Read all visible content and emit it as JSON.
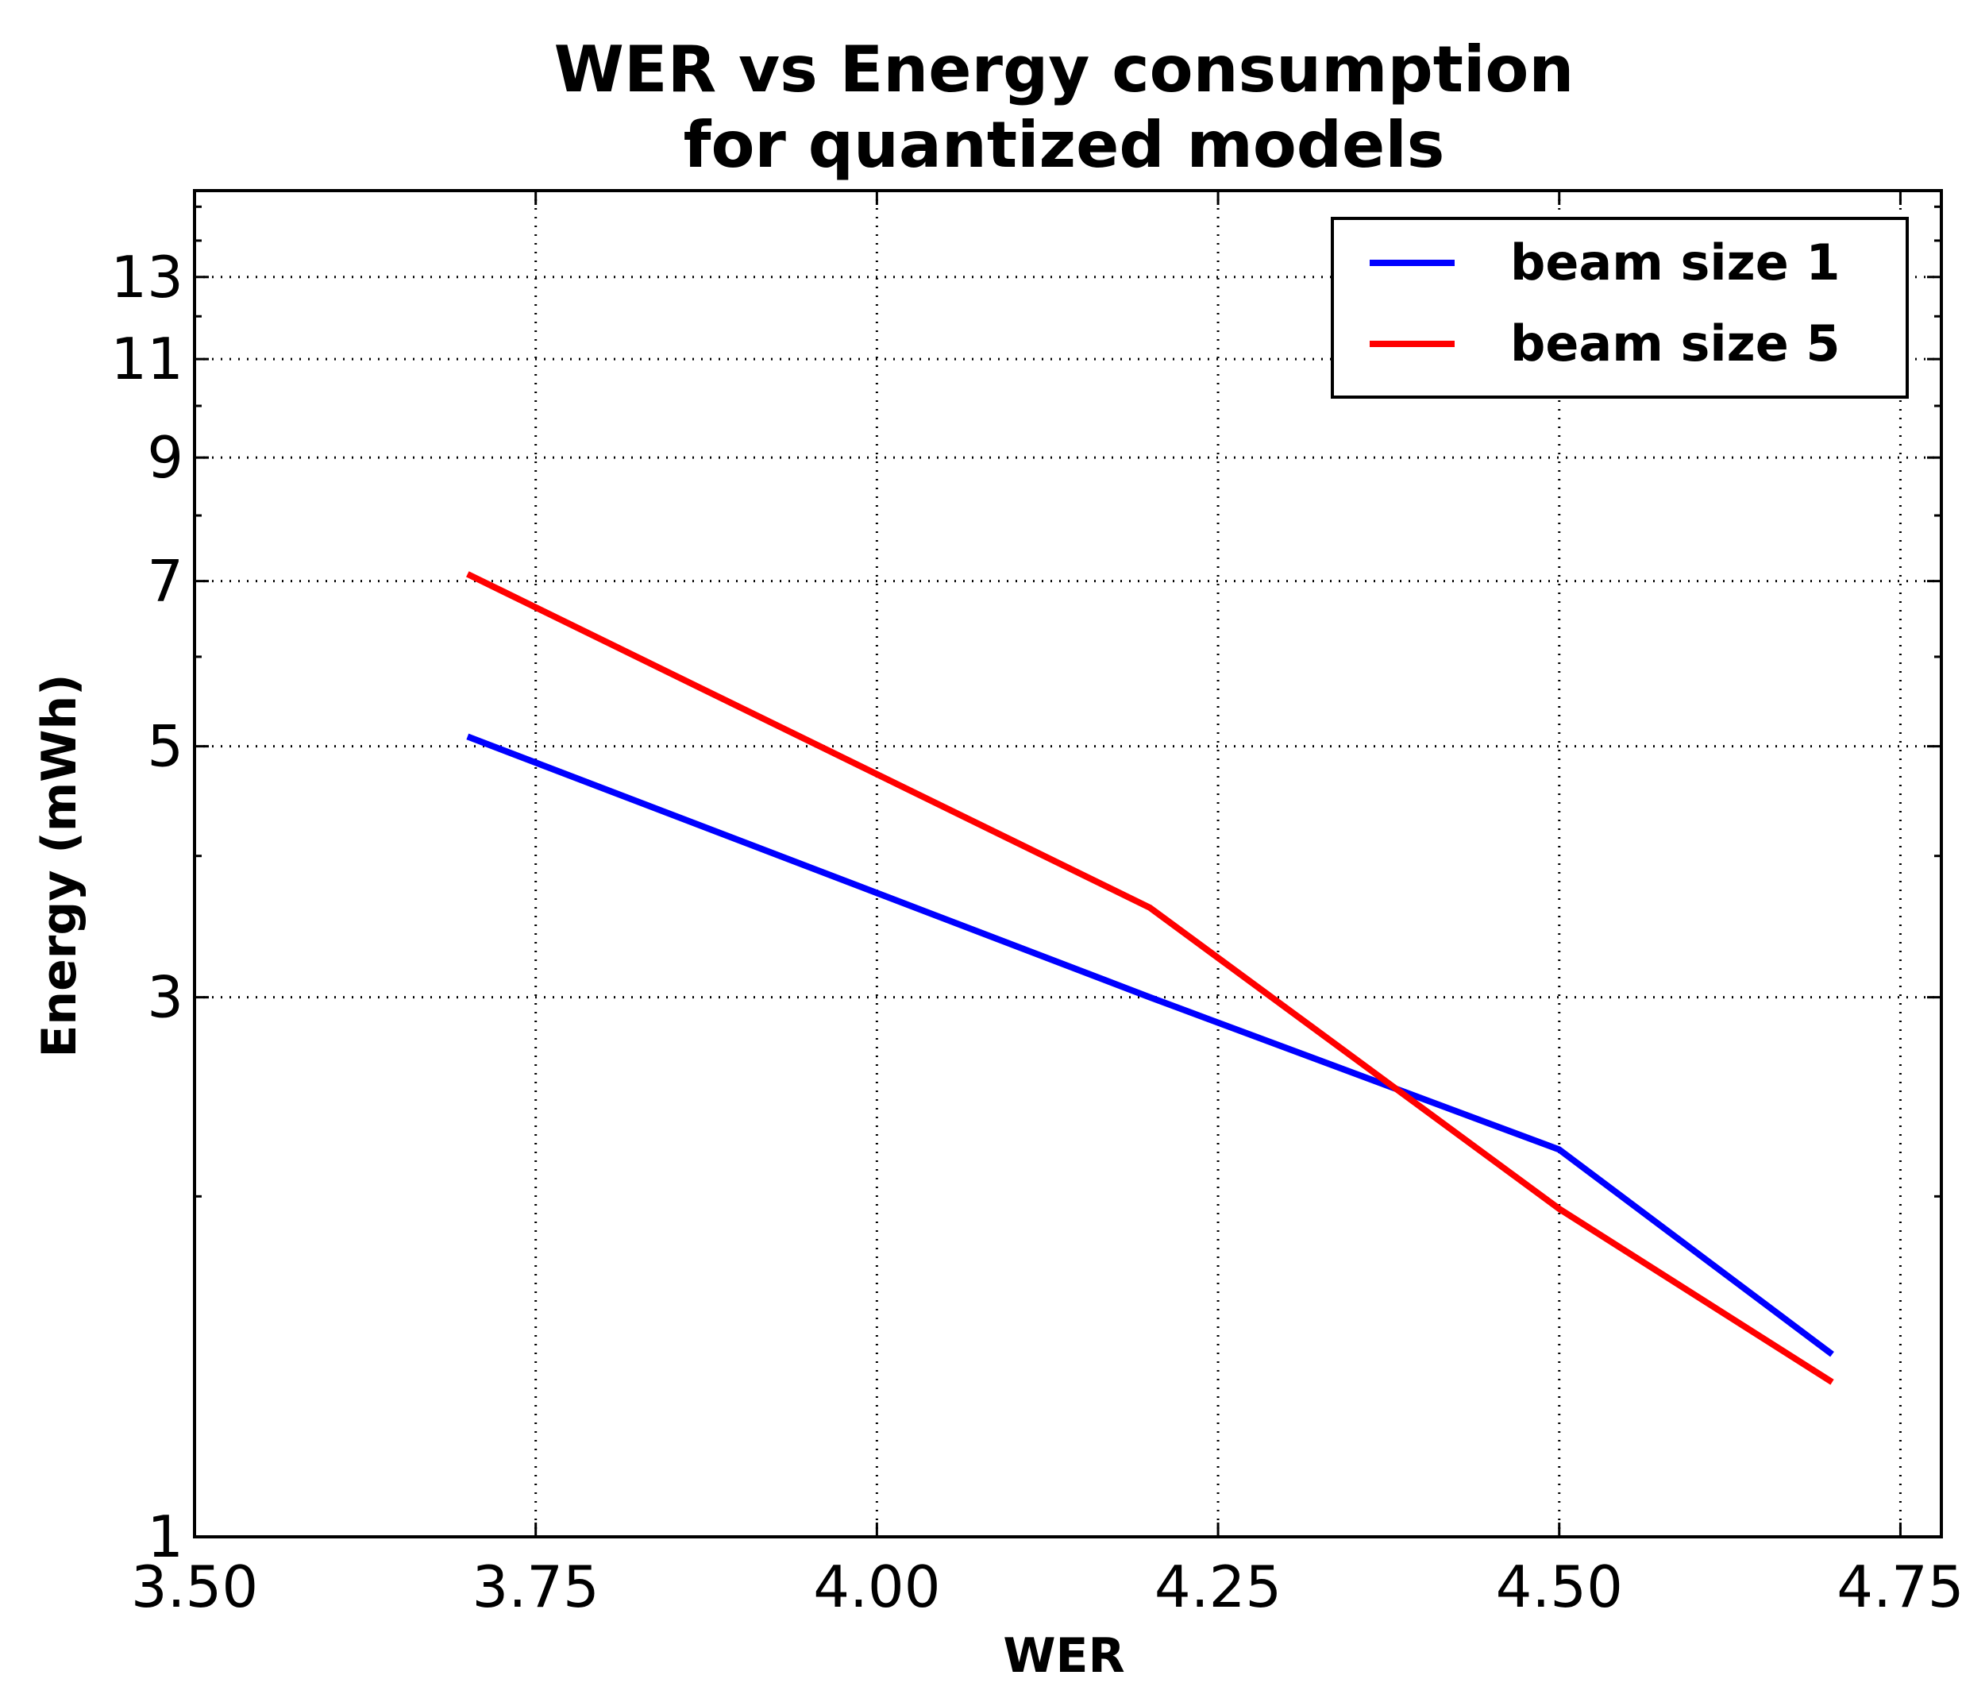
{
  "chart_data": {
    "type": "line",
    "title": [
      "WER vs Energy consumption",
      "for quantized models"
    ],
    "xlabel": "WER",
    "ylabel": "Energy (mWh)",
    "xlim": [
      3.5,
      4.78
    ],
    "ylim": [
      1,
      15.5
    ],
    "y_scale": "log",
    "x_ticks": [
      3.5,
      3.75,
      4.0,
      4.25,
      4.5,
      4.75
    ],
    "x_tick_labels": [
      "3.50",
      "3.75",
      "4.00",
      "4.25",
      "4.50",
      "4.75"
    ],
    "y_ticks": [
      1,
      3,
      5,
      7,
      9,
      11,
      13
    ],
    "y_tick_labels": [
      "1",
      "3",
      "5",
      "7",
      "9",
      "11",
      "13"
    ],
    "y_minor_ticks": [
      2,
      4,
      6,
      8,
      10,
      12,
      14,
      15
    ],
    "grid": true,
    "legend_position": "top-right",
    "series": [
      {
        "name": "beam size 1",
        "color": "#0000ff",
        "x": [
          3.7,
          4.2,
          4.5,
          4.7
        ],
        "y": [
          5.1,
          3.0,
          2.2,
          1.45
        ]
      },
      {
        "name": "beam size 5",
        "color": "#ff0000",
        "x": [
          3.7,
          4.2,
          4.5,
          4.7
        ],
        "y": [
          7.1,
          3.6,
          1.95,
          1.37
        ]
      }
    ]
  }
}
